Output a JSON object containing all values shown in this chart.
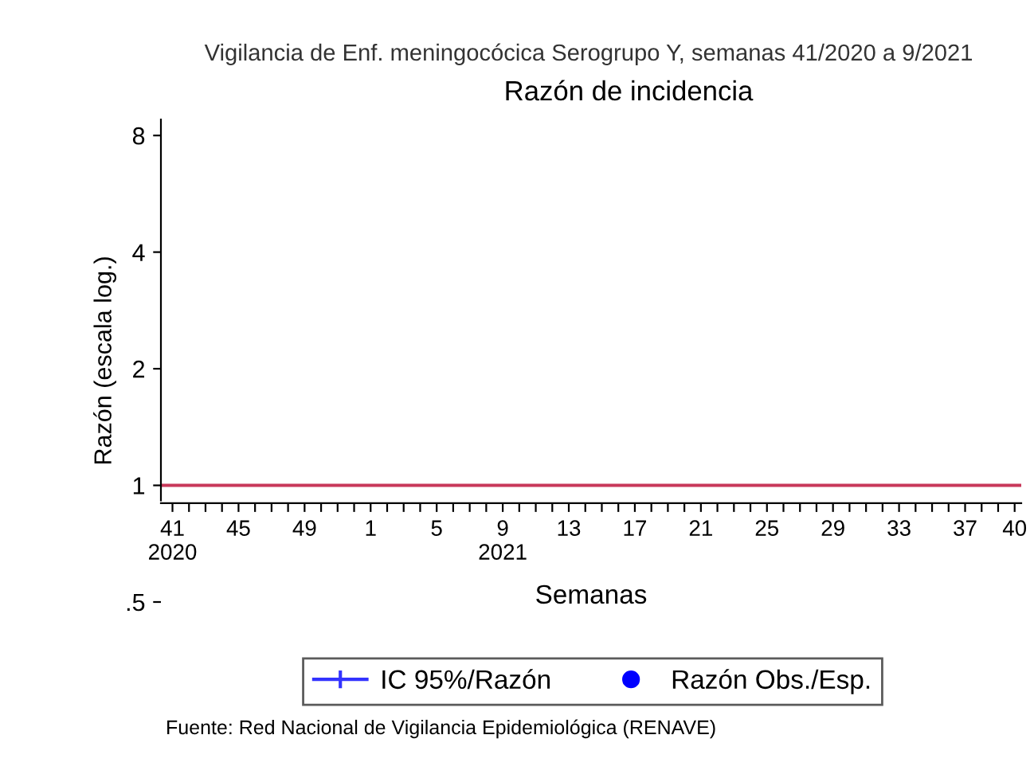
{
  "chart_data": {
    "type": "scatter",
    "title": "Vigilancia de Enf. meningocócica Serogrupo Y, semanas 41/2020 a 9/2021",
    "subtitle": "Razón de incidencia",
    "xlabel": "Semanas",
    "ylabel": "Razón (escala log.)",
    "categories": [
      "41\n2020",
      null,
      null,
      null,
      "45",
      null,
      null,
      null,
      "49",
      null,
      null,
      null,
      "1",
      null,
      null,
      null,
      "5",
      null,
      null,
      null,
      "9\n2021",
      null,
      null,
      null,
      "13",
      null,
      null,
      null,
      "17",
      null,
      null,
      null,
      "21",
      null,
      null,
      null,
      "25",
      null,
      null,
      null,
      "29",
      null,
      null,
      null,
      "33",
      null,
      null,
      null,
      "37",
      null,
      null,
      "40"
    ],
    "series": [
      {
        "name": "IC 95%/Razón",
        "type": "other",
        "color": "#3333ff",
        "values": [
          null,
          null,
          null,
          null,
          null,
          null,
          null,
          null,
          null,
          null,
          null,
          null,
          null,
          null,
          null,
          null,
          null,
          null,
          null,
          null,
          null,
          null,
          null,
          null,
          null,
          null,
          null,
          null,
          null,
          null,
          null,
          null,
          null,
          null,
          null,
          null,
          null,
          null,
          null,
          null,
          null,
          null,
          null,
          null,
          null,
          null,
          null,
          null,
          null,
          null,
          null,
          null
        ]
      },
      {
        "name": "Razón Obs./Esp.",
        "color": "#0000ff",
        "marker": "circle",
        "values": [
          null,
          null,
          null,
          null,
          null,
          null,
          null,
          null,
          null,
          null,
          null,
          null,
          null,
          null,
          null,
          null,
          null,
          null,
          null,
          null,
          null,
          null,
          null,
          null,
          null,
          null,
          null,
          null,
          null,
          null,
          null,
          null,
          null,
          null,
          null,
          null,
          null,
          null,
          null,
          null,
          null,
          null,
          null,
          null,
          null,
          null,
          null,
          null,
          null,
          null,
          null,
          null
        ]
      }
    ],
    "log": true,
    "ylim": [
      0.5,
      8.8
    ],
    "yticks": [
      8,
      4,
      2,
      1,
      {
        "value": 0.5,
        "label": ".5"
      }
    ],
    "ref_lines": [
      {
        "axis": "y",
        "value": 1,
        "color": "#c8385a"
      }
    ],
    "grid": false,
    "legend": "bottom",
    "annotations": [
      "Fuente: Red Nacional de Vigilancia Epidemiológica (RENAVE)"
    ]
  }
}
